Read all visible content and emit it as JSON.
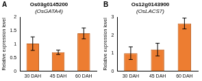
{
  "chart_data": [
    {
      "type": "bar",
      "title": "Os03g0145200",
      "subtitle": "(OsGATA4)",
      "annotations": [
        "A"
      ],
      "categories": [
        "30 DAH",
        "45 DAH",
        "60 DAH"
      ],
      "values": [
        1.02,
        0.7,
        1.4
      ],
      "errors": [
        0.25,
        0.08,
        0.2
      ],
      "color": "#ed7d31",
      "ylabel": "Relative expression level",
      "ylim": [
        0,
        2
      ],
      "yticks": [
        0,
        0.5,
        1,
        1.5,
        2
      ],
      "grid": false
    },
    {
      "type": "bar",
      "title": "Os12g0143900",
      "subtitle": "(OsLACS7)",
      "annotations": [
        "B"
      ],
      "categories": [
        "30 DAH",
        "45 DAH",
        "60 DAH"
      ],
      "values": [
        1.0,
        1.2,
        2.65
      ],
      "errors": [
        0.35,
        0.35,
        0.3
      ],
      "color": "#ed7d31",
      "ylabel": "Relative expression level",
      "ylim": [
        0,
        3
      ],
      "yticks": [
        0,
        1,
        2,
        3
      ],
      "grid": false
    }
  ]
}
